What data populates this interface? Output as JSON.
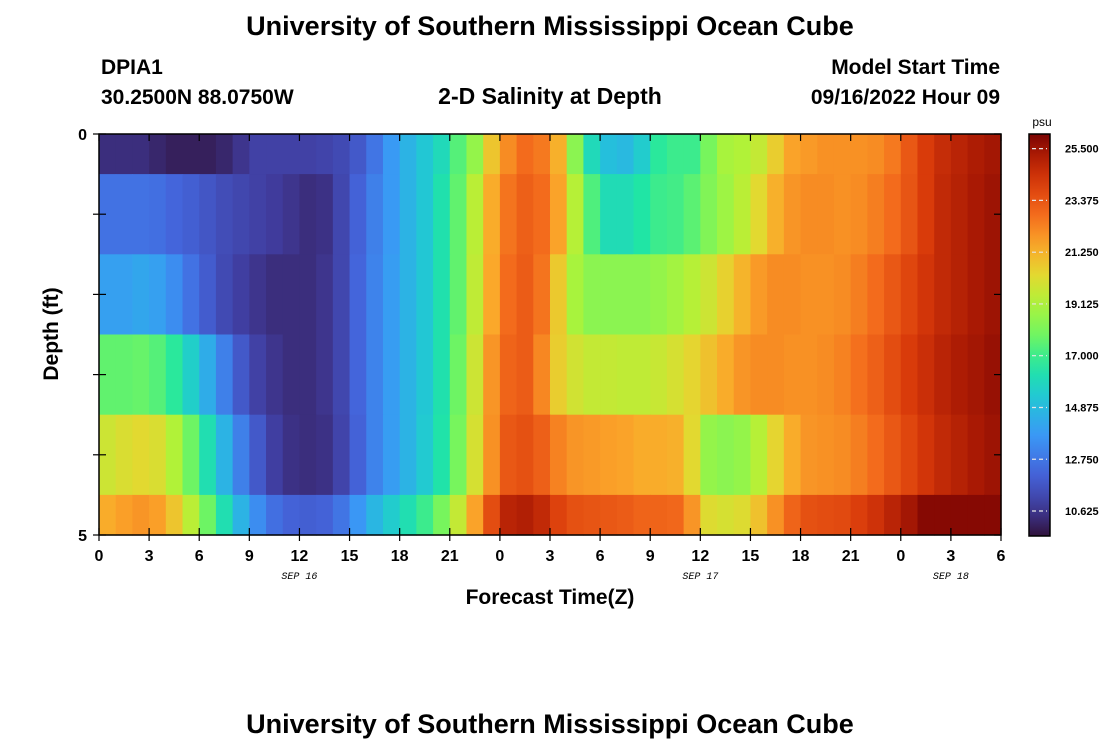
{
  "header": {
    "title": "University of Southern Mississippi Ocean Cube",
    "station_id": "DPIA1",
    "station_coords": "30.2500N  88.0750W",
    "plot_title": "2-D Salinity at Depth",
    "model_start_label": "Model Start Time",
    "model_start_value": "09/16/2022 Hour 09"
  },
  "footer": {
    "title": "University of Southern Mississippi Ocean Cube"
  },
  "chart_data": {
    "type": "heatmap",
    "title": "2-D Salinity at Depth",
    "xlabel": "Forecast Time(Z)",
    "ylabel": "Depth (ft)",
    "x_tick_labels": [
      "0",
      "3",
      "6",
      "9",
      "12",
      "15",
      "18",
      "21",
      "0",
      "3",
      "6",
      "9",
      "12",
      "15",
      "18",
      "21",
      "0",
      "3",
      "6"
    ],
    "date_labels": [
      "SEP 16",
      "SEP 17",
      "SEP 18"
    ],
    "y_tick_labels": [
      "0",
      "5"
    ],
    "ylim": [
      5,
      0
    ],
    "colorbar": {
      "unit": "psu",
      "min": 9.6,
      "max": 26.1,
      "tick_labels": [
        "25.500",
        "23.375",
        "21.250",
        "19.125",
        "17.000",
        "14.875",
        "12.750",
        "10.625"
      ],
      "tick_values": [
        25.5,
        23.375,
        21.25,
        19.125,
        17.0,
        14.875,
        12.75,
        10.625
      ]
    },
    "time_step_hours": 1,
    "depth_layers_ft": [
      0,
      1,
      2,
      3,
      4,
      5
    ],
    "salinity_psu": [
      [
        10.4,
        10.4,
        10.4,
        10.2,
        10.0,
        10.0,
        10.0,
        10.2,
        10.6,
        11.0,
        11.0,
        11.0,
        11.0,
        11.1,
        11.3,
        11.8,
        12.7,
        13.8,
        14.6,
        15.3,
        16.0,
        17.4,
        18.6,
        20.8,
        22.1,
        22.8,
        22.5,
        21.3,
        18.4,
        16.0,
        15.0,
        14.8,
        15.5,
        16.7,
        17.0,
        17.0,
        18.0,
        19.0,
        19.2,
        19.6,
        20.6,
        21.6,
        21.8,
        22.0,
        22.0,
        22.0,
        22.1,
        22.5,
        23.3,
        24.1,
        24.6,
        24.9,
        25.2,
        25.4,
        25.6
      ],
      [
        12.6,
        12.6,
        12.6,
        12.5,
        12.2,
        12.0,
        11.7,
        11.4,
        11.2,
        11.0,
        10.8,
        10.6,
        10.4,
        10.5,
        11.2,
        12.1,
        13.0,
        13.8,
        14.6,
        15.3,
        16.3,
        17.6,
        19.4,
        21.4,
        22.6,
        23.1,
        22.8,
        21.6,
        19.3,
        17.3,
        16.1,
        16.1,
        16.5,
        17.0,
        17.1,
        17.5,
        18.2,
        18.8,
        19.4,
        20.3,
        21.3,
        21.9,
        22.1,
        22.1,
        22.0,
        22.1,
        22.4,
        22.8,
        23.4,
        24.1,
        24.7,
        25.0,
        25.3,
        25.5,
        25.6
      ],
      [
        14.0,
        14.0,
        14.2,
        14.0,
        13.4,
        12.6,
        11.9,
        11.3,
        10.9,
        10.6,
        10.4,
        10.4,
        10.4,
        10.6,
        11.2,
        12.2,
        13.1,
        13.9,
        14.6,
        15.3,
        16.3,
        17.6,
        19.5,
        21.5,
        22.8,
        23.2,
        22.6,
        20.7,
        19.0,
        18.4,
        18.4,
        18.4,
        18.4,
        18.6,
        18.9,
        19.3,
        19.8,
        20.5,
        21.2,
        21.8,
        22.1,
        22.1,
        22.0,
        22.0,
        22.1,
        22.4,
        22.8,
        23.3,
        23.8,
        24.3,
        24.7,
        25.0,
        25.3,
        25.5,
        25.6
      ],
      [
        17.6,
        17.6,
        17.7,
        17.4,
        16.7,
        15.6,
        14.4,
        13.0,
        11.8,
        11.0,
        10.6,
        10.4,
        10.4,
        10.6,
        11.2,
        12.2,
        13.1,
        13.9,
        14.6,
        15.3,
        16.3,
        17.8,
        19.8,
        21.9,
        23.0,
        23.2,
        22.2,
        20.6,
        19.9,
        19.6,
        19.6,
        19.5,
        19.5,
        19.7,
        20.0,
        20.4,
        20.9,
        21.4,
        21.9,
        22.1,
        22.1,
        22.0,
        22.0,
        22.1,
        22.3,
        22.7,
        23.1,
        23.6,
        24.1,
        24.5,
        24.9,
        25.2,
        25.4,
        25.6,
        25.6
      ],
      [
        19.8,
        20.1,
        20.3,
        20.1,
        19.2,
        17.8,
        16.2,
        14.6,
        13.0,
        11.8,
        10.9,
        10.5,
        10.4,
        10.5,
        11.1,
        12.1,
        13.1,
        13.9,
        14.6,
        15.4,
        16.4,
        18.0,
        20.0,
        22.0,
        23.3,
        23.5,
        23.1,
        22.3,
        21.9,
        21.8,
        21.7,
        21.6,
        21.4,
        21.4,
        21.3,
        20.3,
        18.6,
        18.4,
        18.6,
        19.3,
        20.4,
        21.4,
        21.9,
        22.0,
        22.1,
        22.4,
        22.8,
        23.3,
        23.8,
        24.3,
        24.7,
        25.0,
        25.3,
        25.5,
        25.6
      ]
    ]
  }
}
